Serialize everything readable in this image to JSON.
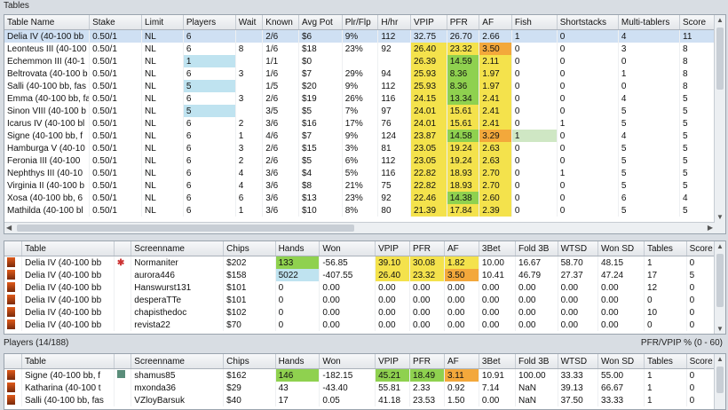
{
  "tables_panel": {
    "title": "Tables",
    "columns": [
      "Table Name",
      "Stake",
      "Limit",
      "Players",
      "Wait",
      "Known",
      "Avg Pot",
      "Plr/Flp",
      "H/hr",
      "VPIP",
      "PFR",
      "AF",
      "Fish",
      "Shortstacks",
      "Multi-tablers",
      "Score"
    ],
    "rows": [
      {
        "name": "Delia IV (40-100 bb",
        "stake": "0.50/1",
        "limit": "NL",
        "players": "6",
        "wait": "",
        "known": "2/6",
        "avgpot": "$6",
        "plrflp": "9%",
        "hhr": "112",
        "vpip": "32.75",
        "pfr": "26.70",
        "af": "2.66",
        "fish": "1",
        "short": "0",
        "multi": "4",
        "score": "11"
      },
      {
        "name": "Leonteus III (40-100",
        "stake": "0.50/1",
        "limit": "NL",
        "players": "6",
        "wait": "8",
        "known": "1/6",
        "avgpot": "$18",
        "plrflp": "23%",
        "hhr": "92",
        "vpip": "26.40",
        "pfr": "23.32",
        "af": "3.50",
        "fish": "0",
        "short": "0",
        "multi": "3",
        "score": "8"
      },
      {
        "name": "Echemmon III (40-1",
        "stake": "0.50/1",
        "limit": "NL",
        "players": "1",
        "wait": "",
        "known": "1/1",
        "avgpot": "$0",
        "plrflp": "",
        "hhr": "",
        "vpip": "26.39",
        "pfr": "14.59",
        "af": "2.11",
        "fish": "0",
        "short": "0",
        "multi": "0",
        "score": "8"
      },
      {
        "name": "Beltrovata (40-100 b",
        "stake": "0.50/1",
        "limit": "NL",
        "players": "6",
        "wait": "3",
        "known": "1/6",
        "avgpot": "$7",
        "plrflp": "29%",
        "hhr": "94",
        "vpip": "25.93",
        "pfr": "8.36",
        "af": "1.97",
        "fish": "0",
        "short": "0",
        "multi": "1",
        "score": "8"
      },
      {
        "name": "Salli (40-100 bb, fas",
        "stake": "0.50/1",
        "limit": "NL",
        "players": "5",
        "wait": "",
        "known": "1/5",
        "avgpot": "$20",
        "plrflp": "9%",
        "hhr": "112",
        "vpip": "25.93",
        "pfr": "8.36",
        "af": "1.97",
        "fish": "0",
        "short": "0",
        "multi": "0",
        "score": "8"
      },
      {
        "name": "Emma (40-100 bb, fa",
        "stake": "0.50/1",
        "limit": "NL",
        "players": "6",
        "wait": "3",
        "known": "2/6",
        "avgpot": "$19",
        "plrflp": "26%",
        "hhr": "116",
        "vpip": "24.15",
        "pfr": "13.34",
        "af": "2.41",
        "fish": "0",
        "short": "0",
        "multi": "4",
        "score": "5"
      },
      {
        "name": "Sinon VIII (40-100 b",
        "stake": "0.50/1",
        "limit": "NL",
        "players": "5",
        "wait": "",
        "known": "3/5",
        "avgpot": "$5",
        "plrflp": "7%",
        "hhr": "97",
        "vpip": "24.01",
        "pfr": "15.61",
        "af": "2.41",
        "fish": "0",
        "short": "0",
        "multi": "5",
        "score": "5"
      },
      {
        "name": "Icarus IV (40-100 bl",
        "stake": "0.50/1",
        "limit": "NL",
        "players": "6",
        "wait": "2",
        "known": "3/6",
        "avgpot": "$16",
        "plrflp": "17%",
        "hhr": "76",
        "vpip": "24.01",
        "pfr": "15.61",
        "af": "2.41",
        "fish": "0",
        "short": "1",
        "multi": "5",
        "score": "5"
      },
      {
        "name": "Signe (40-100 bb, f",
        "stake": "0.50/1",
        "limit": "NL",
        "players": "6",
        "wait": "1",
        "known": "4/6",
        "avgpot": "$7",
        "plrflp": "9%",
        "hhr": "124",
        "vpip": "23.87",
        "pfr": "14.58",
        "af": "3.29",
        "fish": "1",
        "short": "0",
        "multi": "4",
        "score": "5"
      },
      {
        "name": "Hamburga V (40-10",
        "stake": "0.50/1",
        "limit": "NL",
        "players": "6",
        "wait": "3",
        "known": "2/6",
        "avgpot": "$15",
        "plrflp": "3%",
        "hhr": "81",
        "vpip": "23.05",
        "pfr": "19.24",
        "af": "2.63",
        "fish": "0",
        "short": "0",
        "multi": "5",
        "score": "5"
      },
      {
        "name": "Feronia III (40-100",
        "stake": "0.50/1",
        "limit": "NL",
        "players": "6",
        "wait": "2",
        "known": "2/6",
        "avgpot": "$5",
        "plrflp": "6%",
        "hhr": "112",
        "vpip": "23.05",
        "pfr": "19.24",
        "af": "2.63",
        "fish": "0",
        "short": "0",
        "multi": "5",
        "score": "5"
      },
      {
        "name": "Nephthys III (40-10",
        "stake": "0.50/1",
        "limit": "NL",
        "players": "6",
        "wait": "4",
        "known": "3/6",
        "avgpot": "$4",
        "plrflp": "5%",
        "hhr": "116",
        "vpip": "22.82",
        "pfr": "18.93",
        "af": "2.70",
        "fish": "0",
        "short": "1",
        "multi": "5",
        "score": "5"
      },
      {
        "name": "Virginia II (40-100 b",
        "stake": "0.50/1",
        "limit": "NL",
        "players": "6",
        "wait": "4",
        "known": "3/6",
        "avgpot": "$8",
        "plrflp": "21%",
        "hhr": "75",
        "vpip": "22.82",
        "pfr": "18.93",
        "af": "2.70",
        "fish": "0",
        "short": "0",
        "multi": "5",
        "score": "5"
      },
      {
        "name": "Xosa (40-100 bb, 6",
        "stake": "0.50/1",
        "limit": "NL",
        "players": "6",
        "wait": "6",
        "known": "3/6",
        "avgpot": "$13",
        "plrflp": "23%",
        "hhr": "92",
        "vpip": "22.46",
        "pfr": "14.38",
        "af": "2.60",
        "fish": "0",
        "short": "0",
        "multi": "6",
        "score": "4"
      },
      {
        "name": "Mathilda (40-100 bl",
        "stake": "0.50/1",
        "limit": "NL",
        "players": "6",
        "wait": "1",
        "known": "3/6",
        "avgpot": "$10",
        "plrflp": "8%",
        "hhr": "80",
        "vpip": "21.39",
        "pfr": "17.84",
        "af": "2.39",
        "fish": "0",
        "short": "0",
        "multi": "5",
        "score": "5"
      }
    ]
  },
  "seats_panel": {
    "columns": [
      "",
      "Table",
      "",
      "Screenname",
      "Chips",
      "Hands",
      "Won",
      "VPIP",
      "PFR",
      "AF",
      "3Bet",
      "Fold 3B",
      "WTSD",
      "Won SD",
      "Tables",
      "Score"
    ],
    "rows": [
      {
        "table": "Delia IV (40-100 bb",
        "screen": "Normaniter",
        "chips": "$202",
        "hands": "133",
        "won": "-56.85",
        "vpip": "39.10",
        "pfr": "30.08",
        "af": "1.82",
        "tbet": "10.00",
        "fold3b": "16.67",
        "wtsd": "58.70",
        "wonsd": "48.15",
        "tables": "1",
        "score": "0",
        "flag": true
      },
      {
        "table": "Delia IV (40-100 bb",
        "screen": "aurora446",
        "chips": "$158",
        "hands": "5022",
        "won": "-407.55",
        "vpip": "26.40",
        "pfr": "23.32",
        "af": "3.50",
        "tbet": "10.41",
        "fold3b": "46.79",
        "wtsd": "27.37",
        "wonsd": "47.24",
        "tables": "17",
        "score": "5",
        "flag": false
      },
      {
        "table": "Delia IV (40-100 bb",
        "screen": "Hanswurst131",
        "chips": "$101",
        "hands": "0",
        "won": "0.00",
        "vpip": "0.00",
        "pfr": "0.00",
        "af": "0.00",
        "tbet": "0.00",
        "fold3b": "0.00",
        "wtsd": "0.00",
        "wonsd": "0.00",
        "tables": "12",
        "score": "0",
        "flag": false
      },
      {
        "table": "Delia IV (40-100 bb",
        "screen": "desperaTTe",
        "chips": "$101",
        "hands": "0",
        "won": "0.00",
        "vpip": "0.00",
        "pfr": "0.00",
        "af": "0.00",
        "tbet": "0.00",
        "fold3b": "0.00",
        "wtsd": "0.00",
        "wonsd": "0.00",
        "tables": "0",
        "score": "0",
        "flag": false
      },
      {
        "table": "Delia IV (40-100 bb",
        "screen": "chapisthedoc",
        "chips": "$102",
        "hands": "0",
        "won": "0.00",
        "vpip": "0.00",
        "pfr": "0.00",
        "af": "0.00",
        "tbet": "0.00",
        "fold3b": "0.00",
        "wtsd": "0.00",
        "wonsd": "0.00",
        "tables": "10",
        "score": "0",
        "flag": false
      },
      {
        "table": "Delia IV (40-100 bb",
        "screen": "revista22",
        "chips": "$70",
        "hands": "0",
        "won": "0.00",
        "vpip": "0.00",
        "pfr": "0.00",
        "af": "0.00",
        "tbet": "0.00",
        "fold3b": "0.00",
        "wtsd": "0.00",
        "wonsd": "0.00",
        "tables": "0",
        "score": "0",
        "flag": false
      }
    ]
  },
  "players_panel": {
    "title": "Players  (14/188)",
    "range_label": "PFR/VPIP % (0 - 60)",
    "columns": [
      "",
      "Table",
      "",
      "Screenname",
      "Chips",
      "Hands",
      "Won",
      "VPIP",
      "PFR",
      "AF",
      "3Bet",
      "Fold 3B",
      "WTSD",
      "Won SD",
      "Tables",
      "Score"
    ],
    "rows": [
      {
        "table": "Signe (40-100 bb, f",
        "screen": "shamus85",
        "chips": "$162",
        "hands": "146",
        "won": "-182.15",
        "vpip": "45.21",
        "pfr": "18.49",
        "af": "3.11",
        "tbet": "10.91",
        "fold3b": "100.00",
        "wtsd": "33.33",
        "wonsd": "55.00",
        "tables": "1",
        "score": "0"
      },
      {
        "table": "Katharina (40-100 t",
        "screen": "mxonda36",
        "chips": "$29",
        "hands": "43",
        "won": "-43.40",
        "vpip": "55.81",
        "pfr": "2.33",
        "af": "0.92",
        "tbet": "7.14",
        "fold3b": "NaN",
        "wtsd": "39.13",
        "wonsd": "66.67",
        "tables": "1",
        "score": "0"
      },
      {
        "table": "Salli (40-100 bb, fas",
        "screen": "VZloyBarsuk",
        "chips": "$40",
        "hands": "17",
        "won": "0.05",
        "vpip": "41.18",
        "pfr": "23.53",
        "af": "1.50",
        "tbet": "0.00",
        "fold3b": "NaN",
        "wtsd": "37.50",
        "wonsd": "33.33",
        "tables": "1",
        "score": "0"
      }
    ]
  },
  "colors": {
    "green": "#8fd14f",
    "yellow": "#f4e24c",
    "orange": "#f3a83b",
    "blue": "#bfe3f0",
    "selection": "#cfe0f3"
  }
}
